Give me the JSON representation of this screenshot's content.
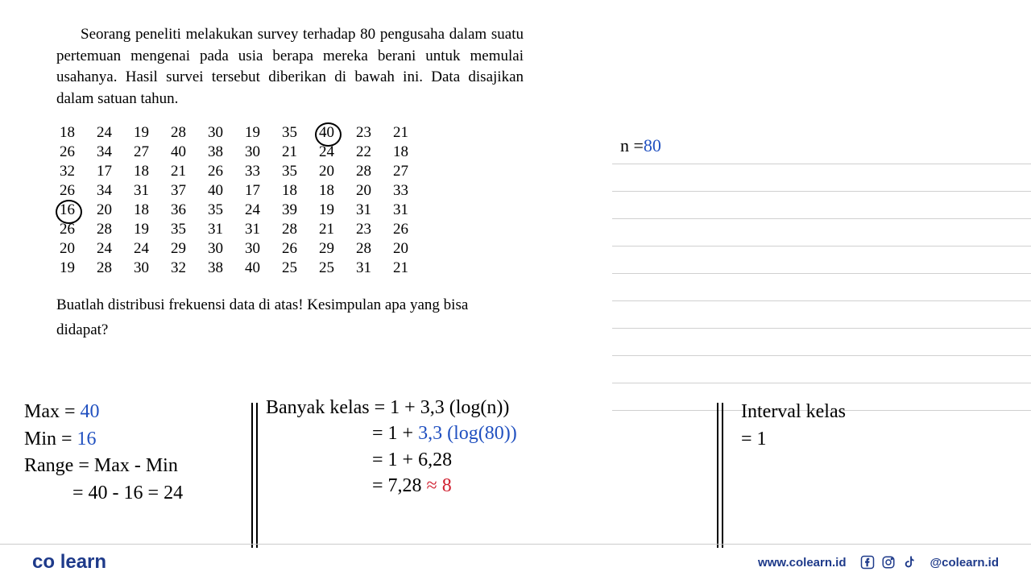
{
  "problem": {
    "text": "Seorang peneliti melakukan survey terhadap 80 pengusaha dalam suatu pertemuan mengenai pada usia berapa mereka berani untuk memulai usahanya. Hasil survei tersebut diberikan di bawah ini. Data disajikan dalam satuan tahun.",
    "question": "Buatlah distribusi frekuensi data di atas! Kesimpulan apa yang bisa didapat?"
  },
  "data_grid": {
    "rows": [
      [
        "18",
        "24",
        "19",
        "28",
        "30",
        "19",
        "35",
        "40",
        "23",
        "21"
      ],
      [
        "26",
        "34",
        "27",
        "40",
        "38",
        "30",
        "21",
        "24",
        "22",
        "18"
      ],
      [
        "32",
        "17",
        "18",
        "21",
        "26",
        "33",
        "35",
        "20",
        "28",
        "27"
      ],
      [
        "26",
        "34",
        "31",
        "37",
        "40",
        "17",
        "18",
        "18",
        "20",
        "33"
      ],
      [
        "16",
        "20",
        "18",
        "36",
        "35",
        "24",
        "39",
        "19",
        "31",
        "31"
      ],
      [
        "26",
        "28",
        "19",
        "35",
        "31",
        "31",
        "28",
        "21",
        "23",
        "26"
      ],
      [
        "20",
        "24",
        "24",
        "29",
        "30",
        "30",
        "26",
        "29",
        "28",
        "20"
      ],
      [
        "19",
        "28",
        "30",
        "32",
        "38",
        "40",
        "25",
        "25",
        "31",
        "21"
      ]
    ],
    "circled": [
      {
        "row": 0,
        "col": 7
      },
      {
        "row": 4,
        "col": 0
      }
    ]
  },
  "handwriting": {
    "n_label": "n =",
    "n_value": "80",
    "left": {
      "l1a": "Max = ",
      "l1b": "40",
      "l2a": "Min = ",
      "l2b": "16",
      "l3": "Range = Max - Min",
      "l4": "          = 40 - 16 = 24"
    },
    "center": {
      "l1": "Banyak kelas = 1 + 3,3 (log(n))",
      "l2a": "                      = 1 + ",
      "l2b": "3,3 (log(80))",
      "l3": "                      = 1 + 6,28",
      "l4a": "                      = 7,28 ",
      "l4b": "≈ 8"
    },
    "right": {
      "l1": "Interval kelas",
      "l2": "= 1"
    }
  },
  "footer": {
    "logo_co": "co",
    "logo_learn": "learn",
    "website": "www.colearn.id",
    "handle": "@colearn.id"
  },
  "styling": {
    "background_color": "#ffffff",
    "text_color": "#000000",
    "line_color": "#d0d0d0",
    "brand_blue": "#1e3a8a",
    "brand_orange": "#f59e0b",
    "hw_blue": "#2050c0",
    "hw_red": "#d02030",
    "body_fontsize": 19,
    "hw_fontsize": 24
  }
}
